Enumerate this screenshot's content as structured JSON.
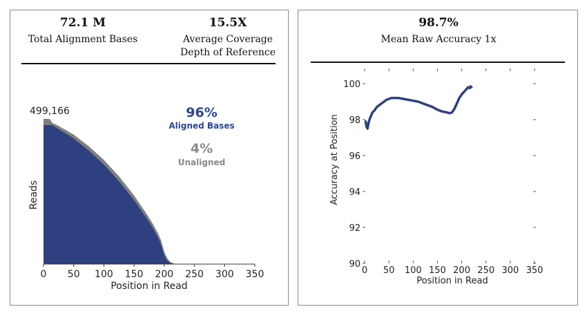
{
  "left_panel": {
    "stats": [
      {
        "value": "72.1 M",
        "label_lines": [
          "Total Alignment Bases"
        ]
      },
      {
        "value": "15.5X",
        "label_lines": [
          "Average Coverage",
          "Depth of Reference"
        ]
      }
    ]
  },
  "right_panel": {
    "stats": [
      {
        "value": "98.7%",
        "label_lines": [
          "Mean Raw Accuracy 1x"
        ]
      }
    ]
  },
  "colors": {
    "aligned": "#2e4080",
    "unaligned": "#7f7f7f",
    "aligned_text": "#2e4596",
    "unaligned_text": "#888888"
  },
  "chart_data": [
    {
      "type": "area",
      "xlabel": "Position in Read",
      "ylabel": "Reads",
      "xlim": [
        0,
        350
      ],
      "xticks": [
        0,
        50,
        100,
        150,
        200,
        250,
        300,
        350
      ],
      "ymax_label": "499,166",
      "ylim": [
        0,
        499166
      ],
      "annotations": {
        "aligned_pct": "96%",
        "aligned_label": "Aligned Bases",
        "unaligned_pct": "4%",
        "unaligned_label": "Unaligned"
      },
      "series": [
        {
          "name": "Total",
          "x": [
            0,
            10,
            15,
            25,
            50,
            75,
            100,
            125,
            150,
            170,
            180,
            190,
            195,
            200,
            205,
            210,
            215,
            220,
            230,
            350
          ],
          "y": [
            499166,
            499166,
            485000,
            475000,
            445000,
            405000,
            358000,
            302000,
            236000,
            175000,
            142000,
            104000,
            80000,
            42000,
            20000,
            7000,
            2500,
            800,
            0,
            0
          ]
        },
        {
          "name": "Aligned",
          "x": [
            0,
            15,
            25,
            50,
            75,
            100,
            125,
            150,
            170,
            180,
            190,
            195,
            200,
            205,
            210,
            215,
            220,
            230,
            350
          ],
          "y": [
            478000,
            478000,
            464000,
            432000,
            390000,
            342000,
            285000,
            220000,
            160000,
            128000,
            90000,
            65000,
            30000,
            12000,
            4000,
            1500,
            500,
            0,
            0
          ]
        }
      ]
    },
    {
      "type": "line",
      "xlabel": "Position in Read",
      "ylabel": "Accuracy at Position",
      "xlim": [
        0,
        350
      ],
      "ylim": [
        90,
        100
      ],
      "xticks": [
        0,
        50,
        100,
        150,
        200,
        250,
        300,
        350
      ],
      "yticks": [
        90,
        92,
        94,
        96,
        98,
        100
      ],
      "series": [
        {
          "name": "Accuracy",
          "x": [
            2,
            4,
            6,
            8,
            10,
            13,
            16,
            20,
            25,
            30,
            35,
            40,
            45,
            50,
            55,
            60,
            70,
            80,
            90,
            100,
            110,
            120,
            130,
            140,
            150,
            160,
            170,
            175,
            180,
            185,
            190,
            195,
            200,
            205,
            210,
            213,
            216,
            218,
            220
          ],
          "y": [
            97.9,
            97.6,
            97.5,
            97.8,
            98.0,
            98.2,
            98.4,
            98.5,
            98.7,
            98.8,
            98.9,
            99.0,
            99.1,
            99.15,
            99.2,
            99.2,
            99.2,
            99.15,
            99.1,
            99.05,
            99.0,
            98.9,
            98.8,
            98.7,
            98.55,
            98.45,
            98.4,
            98.35,
            98.4,
            98.6,
            98.9,
            99.2,
            99.4,
            99.55,
            99.7,
            99.8,
            99.75,
            99.85,
            99.8
          ]
        }
      ]
    }
  ]
}
